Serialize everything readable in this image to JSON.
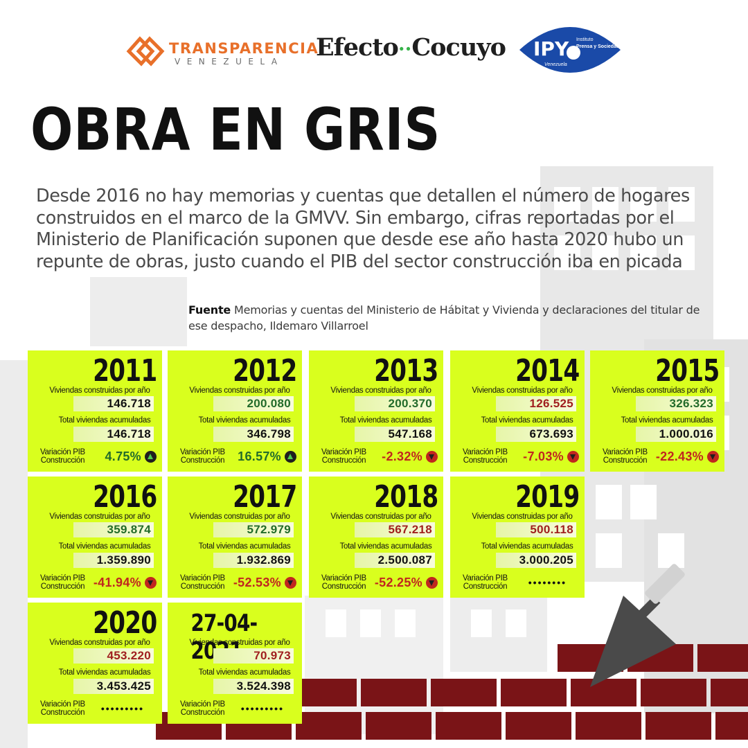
{
  "logos": {
    "transparencia_top": "TRANSPARENCIA",
    "transparencia_bottom": "VENEZUELA",
    "efecto_a": "Efecto",
    "efecto_dots": "··",
    "efecto_b": "Cocuyo",
    "ipys_line1": "Instituto",
    "ipys_line2": "Prensa y Sociedad",
    "ipys_country": "Venezuela"
  },
  "title": "OBRA EN GRIS",
  "intro": "Desde 2016 no hay memorias y cuentas que detallen el número de hogares construidos en el marco de la GMVV. Sin embargo, cifras reportadas por el Ministerio de Planificación suponen que desde ese año hasta 2020 hubo un repunte de obras, justo cuando el PIB del sector construcción iba en picada",
  "source": {
    "label": "Fuente",
    "text": "Memorias y cuentas del Ministerio  de Hábitat y Vivienda y declaraciones del titular de ese despacho, Ildemaro Villarroel"
  },
  "labels": {
    "per_year": "Viviendas construidas por año",
    "accumulated": "Total viviendas acumuladas",
    "pib_1": "Variación PIB",
    "pib_2": "Construcción"
  },
  "colors": {
    "card": "#d9ff1e",
    "up": "#226b2a",
    "down": "#a01f1f",
    "brick": "#7a1417"
  },
  "cards": [
    {
      "year": "2011",
      "per_year": "146.718",
      "accumulated": "146.718",
      "pib": "4.75%",
      "trend": "neutral",
      "pib_trend": "up"
    },
    {
      "year": "2012",
      "per_year": "200.080",
      "accumulated": "346.798",
      "pib": "16.57%",
      "trend": "up",
      "pib_trend": "up"
    },
    {
      "year": "2013",
      "per_year": "200.370",
      "accumulated": "547.168",
      "pib": "-2.32%",
      "trend": "up",
      "pib_trend": "down"
    },
    {
      "year": "2014",
      "per_year": "126.525",
      "accumulated": "673.693",
      "pib": "-7.03%",
      "trend": "down",
      "pib_trend": "down"
    },
    {
      "year": "2015",
      "per_year": "326.323",
      "accumulated": "1.000.016",
      "pib": "-22.43%",
      "trend": "up",
      "pib_trend": "down"
    },
    {
      "year": "2016",
      "per_year": "359.874",
      "accumulated": "1.359.890",
      "pib": "-41.94%",
      "trend": "up",
      "pib_trend": "down"
    },
    {
      "year": "2017",
      "per_year": "572.979",
      "accumulated": "1.932.869",
      "pib": "-52.53%",
      "trend": "up",
      "pib_trend": "down"
    },
    {
      "year": "2018",
      "per_year": "567.218",
      "accumulated": "2.500.087",
      "pib": "-52.25%",
      "trend": "down",
      "pib_trend": "down"
    },
    {
      "year": "2019",
      "per_year": "500.118",
      "accumulated": "3.000.205",
      "pib": "••••••••",
      "trend": "down",
      "pib_trend": "none"
    },
    {
      "year": "2020",
      "per_year": "453.220",
      "accumulated": "3.453.425",
      "pib": "•••••••••",
      "trend": "down",
      "pib_trend": "none"
    },
    {
      "year": "27-04-2021",
      "per_year": "70.973",
      "accumulated": "3.524.398",
      "pib": "•••••••••",
      "trend": "down",
      "pib_trend": "none"
    }
  ]
}
